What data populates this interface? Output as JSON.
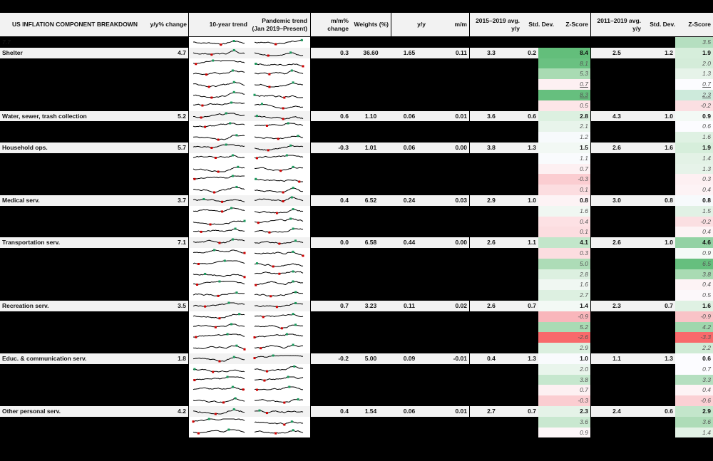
{
  "header": {
    "title": "US INFLATION COMPONENT BREAKDOWN",
    "yy_change": "y/y% change",
    "trend10": "10-year trend",
    "pandemic": "Pandemic trend (Jan 2019–Present)",
    "mm_change": "m/m% change",
    "weights": "Weights (%)",
    "yy": "y/y",
    "mm": "m/m",
    "avg1519": "2015–2019 avg. y/y",
    "std1": "Std. Dev.",
    "z1": "Z-Score",
    "avg1119": "2011–2019 avg. y/y",
    "std2": "Std. Dev.",
    "z2": "Z-Score"
  },
  "colors": {
    "green_strong": "#63be7b",
    "green_mid": "#a9dbb3",
    "green_light": "#d6eedb",
    "green_faint": "#eef7f0",
    "white": "#fcfcff",
    "red_faint": "#fdecee",
    "red_light": "#fbd5d8",
    "red_mid": "#f9b6bb",
    "red_strong": "#f8696b",
    "sparkline_high": "#1a9a5c",
    "sparkline_low": "#d00000"
  },
  "rows": [
    {
      "type": "sub",
      "z1": "7.7",
      "z1c": "#7ec892",
      "z2": "3.5",
      "z2c": "#b5dfc0",
      "bold": true
    },
    {
      "type": "main",
      "label": "Shelter",
      "yy": "4.7",
      "mm_change": "0.3",
      "weights": "36.60",
      "yyc": "1.65",
      "mmc": "0.11",
      "avg1": "3.3",
      "std1": "0.2",
      "z1": "8.4",
      "z1c": "#63be7b",
      "avg2": "2.5",
      "std2": "1.2",
      "z2": "1.9",
      "z2c": "#d6eedb"
    },
    {
      "type": "sub",
      "z1": "8.1",
      "z1c": "#6ac181",
      "z2": "2.0",
      "z2c": "#d4ecd9"
    },
    {
      "type": "sub",
      "z1": "5.3",
      "z1c": "#a9dbb3",
      "z2": "1.3",
      "z2c": "#e6f3e9"
    },
    {
      "type": "sub",
      "z1": "0.7",
      "z1c": "#fdf0f2",
      "z2": "0.7",
      "z2c": "#fcfcff",
      "u": true
    },
    {
      "type": "sub",
      "z1": "8.3",
      "z1c": "#66bf7e",
      "z2": "2.3",
      "z2c": "#cdeadb",
      "u": true
    },
    {
      "type": "sub",
      "z1": "0.5",
      "z1c": "#fde6e8",
      "z2": "-0.2",
      "z2c": "#fbdfe2"
    },
    {
      "type": "main",
      "label": "Water, sewer, trash collection",
      "yy": "5.2",
      "mm_change": "0.6",
      "weights": "1.10",
      "yyc": "0.06",
      "mmc": "0.01",
      "avg1": "3.6",
      "std1": "0.6",
      "z1": "2.8",
      "z1c": "#dcf0e0",
      "avg2": "4.3",
      "std2": "1.0",
      "z2": "0.9",
      "z2c": "#f3f9f5"
    },
    {
      "type": "sub",
      "z1": "2.1",
      "z1c": "#e8f4eb",
      "z2": "0.6",
      "z2c": "#fcfcff"
    },
    {
      "type": "sub",
      "z1": "1.2",
      "z1c": "#f7fafc",
      "z2": "1.6",
      "z2c": "#dff1e3"
    },
    {
      "type": "main",
      "label": "Household ops.",
      "yy": "5.7",
      "mm_change": "-0.3",
      "weights": "1.01",
      "yyc": "0.06",
      "mmc": "0.00",
      "avg1": "3.8",
      "std1": "1.3",
      "z1": "1.5",
      "z1c": "#f2f8f4",
      "avg2": "2.6",
      "std2": "1.6",
      "z2": "1.9",
      "z2c": "#d6eedb"
    },
    {
      "type": "sub",
      "z1": "1.1",
      "z1c": "#f9fbfd",
      "z2": "1.4",
      "z2c": "#e3f2e6"
    },
    {
      "type": "sub",
      "z1": "0.7",
      "z1c": "#fdf0f2",
      "z2": "1.3",
      "z2c": "#e6f3e9"
    },
    {
      "type": "sub",
      "z1": "-0.3",
      "z1c": "#fbcdd1",
      "z2": "0.3",
      "z2c": "#fdf0f2"
    },
    {
      "type": "sub",
      "z1": "0.1",
      "z1c": "#fcdde0",
      "z2": "0.4",
      "z2c": "#fdf3f5"
    },
    {
      "type": "main",
      "label": "Medical serv.",
      "yy": "3.7",
      "mm_change": "0.4",
      "weights": "6.52",
      "yyc": "0.24",
      "mmc": "0.03",
      "avg1": "2.9",
      "std1": "1.0",
      "z1": "0.8",
      "z1c": "#fdf3f5",
      "avg2": "3.0",
      "std2": "0.8",
      "z2": "0.8",
      "z2c": "#f7fafc"
    },
    {
      "type": "sub",
      "z1": "1.6",
      "z1c": "#f0f7f2",
      "z2": "1.5",
      "z2c": "#e1f1e5"
    },
    {
      "type": "sub",
      "z1": "0.4",
      "z1c": "#fde1e4",
      "z2": "-0.2",
      "z2c": "#fbdfe2"
    },
    {
      "type": "sub",
      "z1": "0.1",
      "z1c": "#fcdde0",
      "z2": "0.4",
      "z2c": "#fdf3f5"
    },
    {
      "type": "main",
      "label": "Transportation serv.",
      "yy": "7.1",
      "mm_change": "0.0",
      "weights": "6.58",
      "yyc": "0.44",
      "mmc": "0.00",
      "avg1": "2.6",
      "std1": "1.1",
      "z1": "4.1",
      "z1c": "#c2e6ca",
      "avg2": "2.6",
      "std2": "1.0",
      "z2": "4.6",
      "z2c": "#93d2a4"
    },
    {
      "type": "sub",
      "z1": "0.3",
      "z1c": "#fcdde0",
      "z2": "0.9",
      "z2c": "#f5faf7"
    },
    {
      "type": "sub",
      "z1": "5.0",
      "z1c": "#addcb7",
      "z2": "6.5",
      "z2c": "#66bf7e"
    },
    {
      "type": "sub",
      "z1": "2.8",
      "z1c": "#dcf0e0",
      "z2": "3.8",
      "z2c": "#a9dbb3"
    },
    {
      "type": "sub",
      "z1": "1.6",
      "z1c": "#f0f7f2",
      "z2": "0.4",
      "z2c": "#fdf3f5"
    },
    {
      "type": "sub",
      "z1": "2.7",
      "z1c": "#ddf0e1",
      "z2": "0.5",
      "z2c": "#fcf8fa"
    },
    {
      "type": "main",
      "label": "Recreation serv.",
      "yy": "3.5",
      "mm_change": "0.7",
      "weights": "3.23",
      "yyc": "0.11",
      "mmc": "0.02",
      "avg1": "2.6",
      "std1": "0.7",
      "z1": "1.4",
      "z1c": "#f3f9f5",
      "avg2": "2.3",
      "std2": "0.7",
      "z2": "1.6",
      "z2c": "#dff1e3"
    },
    {
      "type": "sub",
      "z1": "-0.9",
      "z1c": "#f9b6bb",
      "z2": "-0.9",
      "z2c": "#f9c3c7"
    },
    {
      "type": "sub",
      "z1": "5.2",
      "z1c": "#aadbb4",
      "z2": "4.2",
      "z2c": "#9fd7ad"
    },
    {
      "type": "sub",
      "z1": "-2.6",
      "z1c": "#f8696b",
      "z2": "-3.3",
      "z2c": "#f8696b"
    },
    {
      "type": "sub",
      "z1": "2.9",
      "z1c": "#dbefdf",
      "z2": "2.2",
      "z2c": "#d0ebd6"
    },
    {
      "type": "main",
      "label": "Educ. & communication serv.",
      "yy": "1.8",
      "mm_change": "-0.2",
      "weights": "5.00",
      "yyc": "0.09",
      "mmc": "-0.01",
      "avg1": "0.4",
      "std1": "1.3",
      "z1": "1.0",
      "z1c": "#f9fbfd",
      "avg2": "1.1",
      "std2": "1.3",
      "z2": "0.6",
      "z2c": "#fcfcff"
    },
    {
      "type": "sub",
      "z1": "2.0",
      "z1c": "#e9f5ec",
      "z2": "0.7",
      "z2c": "#fcfcff"
    },
    {
      "type": "sub",
      "z1": "3.8",
      "z1c": "#c6e7ce",
      "z2": "3.3",
      "z2c": "#b5dfc0"
    },
    {
      "type": "sub",
      "z1": "0.7",
      "z1c": "#fdf0f2",
      "z2": "0.4",
      "z2c": "#fdf3f5"
    },
    {
      "type": "sub",
      "z1": "-0.3",
      "z1c": "#fbcdd1",
      "z2": "-0.6",
      "z2c": "#fbd0d4"
    },
    {
      "type": "main",
      "label": "Other personal serv.",
      "yy": "4.2",
      "mm_change": "0.4",
      "weights": "1.54",
      "yyc": "0.06",
      "mmc": "0.01",
      "avg1": "2.7",
      "std1": "0.7",
      "z1": "2.3",
      "z1c": "#e5f3e8",
      "avg2": "2.4",
      "std2": "0.6",
      "z2": "2.9",
      "z2c": "#c3e6cb"
    },
    {
      "type": "sub",
      "z1": "3.6",
      "z1c": "#c9e8d0",
      "z2": "3.6",
      "z2c": "#aedcb8"
    },
    {
      "type": "sub",
      "z1": "0.9",
      "z1c": "#fdf6f8",
      "z2": "1.4",
      "z2c": "#e3f2e6"
    }
  ]
}
